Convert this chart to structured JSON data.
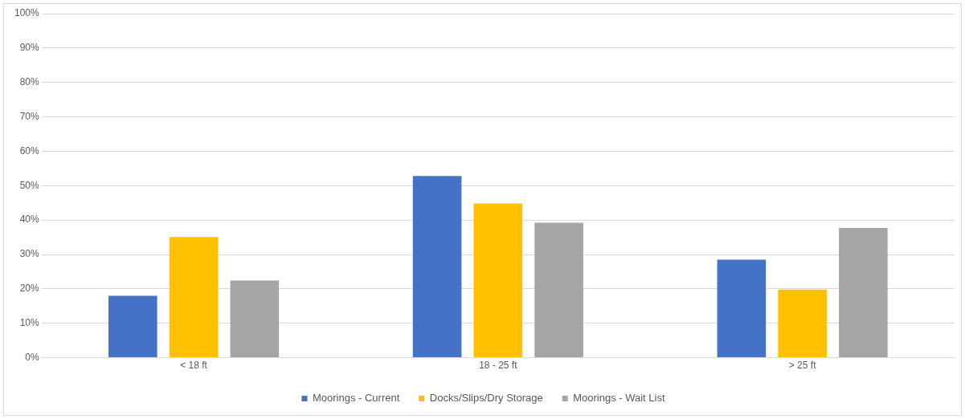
{
  "chart_data": {
    "type": "bar",
    "categories": [
      "< 18 ft",
      "18 - 25 ft",
      "> 25 ft"
    ],
    "series": [
      {
        "name": "Moorings - Current",
        "color": "#4472c4",
        "values": [
          18,
          52.8,
          28.5
        ]
      },
      {
        "name": "Docks/Slips/Dry Storage",
        "color": "#ffc000",
        "values": [
          35.1,
          44.8,
          19.8
        ]
      },
      {
        "name": "Moorings - Wait List",
        "color": "#a5a5a5",
        "values": [
          22.4,
          39.2,
          37.7
        ]
      }
    ],
    "ylim": [
      0,
      100
    ],
    "yticks": [
      {
        "value": 0,
        "label": "0%"
      },
      {
        "value": 10,
        "label": "10%"
      },
      {
        "value": 20,
        "label": "20%"
      },
      {
        "value": 30,
        "label": "30%"
      },
      {
        "value": 40,
        "label": "40%"
      },
      {
        "value": 50,
        "label": "50%"
      },
      {
        "value": 60,
        "label": "60%"
      },
      {
        "value": 70,
        "label": "70%"
      },
      {
        "value": 80,
        "label": "80%"
      },
      {
        "value": 90,
        "label": "90%"
      },
      {
        "value": 100,
        "label": "100%"
      }
    ],
    "grid": "y",
    "legend": "bottom"
  }
}
